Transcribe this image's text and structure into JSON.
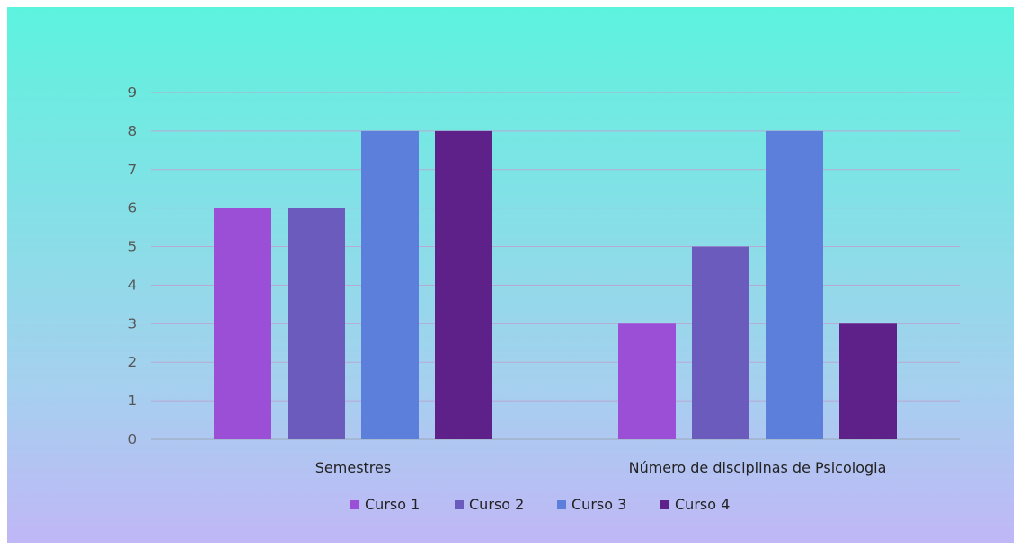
{
  "chart_data": {
    "type": "bar",
    "categories": [
      "Semestres",
      "Número de disciplinas de Psicologia"
    ],
    "series": [
      {
        "name": "Curso 1",
        "values": [
          6,
          3
        ],
        "color": "#9b4fd6"
      },
      {
        "name": "Curso 2",
        "values": [
          6,
          5
        ],
        "color": "#6a5bbd"
      },
      {
        "name": "Curso 3",
        "values": [
          8,
          8
        ],
        "color": "#5b7fdb"
      },
      {
        "name": "Curso 4",
        "values": [
          8,
          3
        ],
        "color": "#5e2089"
      }
    ],
    "ylim": [
      0,
      9
    ],
    "yticks": [
      "0",
      "1",
      "2",
      "3",
      "4",
      "5",
      "6",
      "7",
      "8",
      "9"
    ],
    "grid": true,
    "legend": "bottom",
    "title": "",
    "xlabel": "",
    "ylabel": ""
  }
}
